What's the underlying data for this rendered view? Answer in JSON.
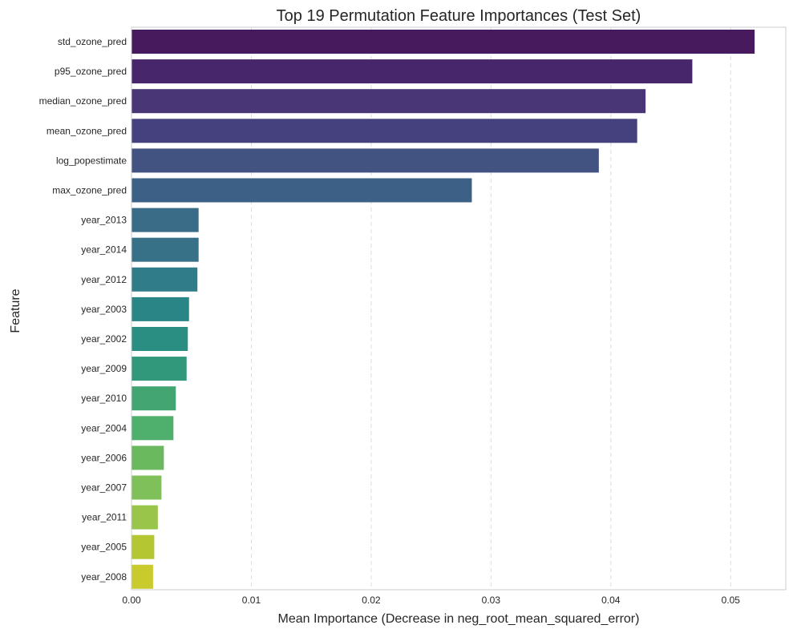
{
  "chart_data": {
    "type": "bar",
    "orientation": "horizontal",
    "title": "Top 19 Permutation Feature Importances (Test Set)",
    "xlabel": "Mean Importance (Decrease in neg_root_mean_squared_error)",
    "ylabel": "Feature",
    "xlim": [
      0,
      0.0546
    ],
    "xticks": [
      0.0,
      0.01,
      0.02,
      0.03,
      0.04,
      0.05
    ],
    "xtick_labels": [
      "0.00",
      "0.01",
      "0.02",
      "0.03",
      "0.04",
      "0.05"
    ],
    "grid": "x-dashed",
    "categories": [
      "std_ozone_pred",
      "p95_ozone_pred",
      "median_ozone_pred",
      "mean_ozone_pred",
      "log_popestimate",
      "max_ozone_pred",
      "year_2013",
      "year_2014",
      "year_2012",
      "year_2003",
      "year_2002",
      "year_2009",
      "year_2010",
      "year_2004",
      "year_2006",
      "year_2007",
      "year_2011",
      "year_2005",
      "year_2008"
    ],
    "values": [
      0.052,
      0.0468,
      0.0429,
      0.0422,
      0.039,
      0.0284,
      0.0056,
      0.0056,
      0.0055,
      0.0048,
      0.0047,
      0.0046,
      0.0037,
      0.0035,
      0.0027,
      0.0025,
      0.0022,
      0.0019,
      0.0018
    ],
    "colors": [
      "#471a5e",
      "#48266c",
      "#483677",
      "#45417f",
      "#425382",
      "#3d6086",
      "#3a6c88",
      "#377188",
      "#307c88",
      "#2a8586",
      "#2a8f82",
      "#31987c",
      "#42a572",
      "#4faf6c",
      "#6ab95f",
      "#80c05a",
      "#98c54a",
      "#b4c733",
      "#c8cb2b"
    ]
  }
}
